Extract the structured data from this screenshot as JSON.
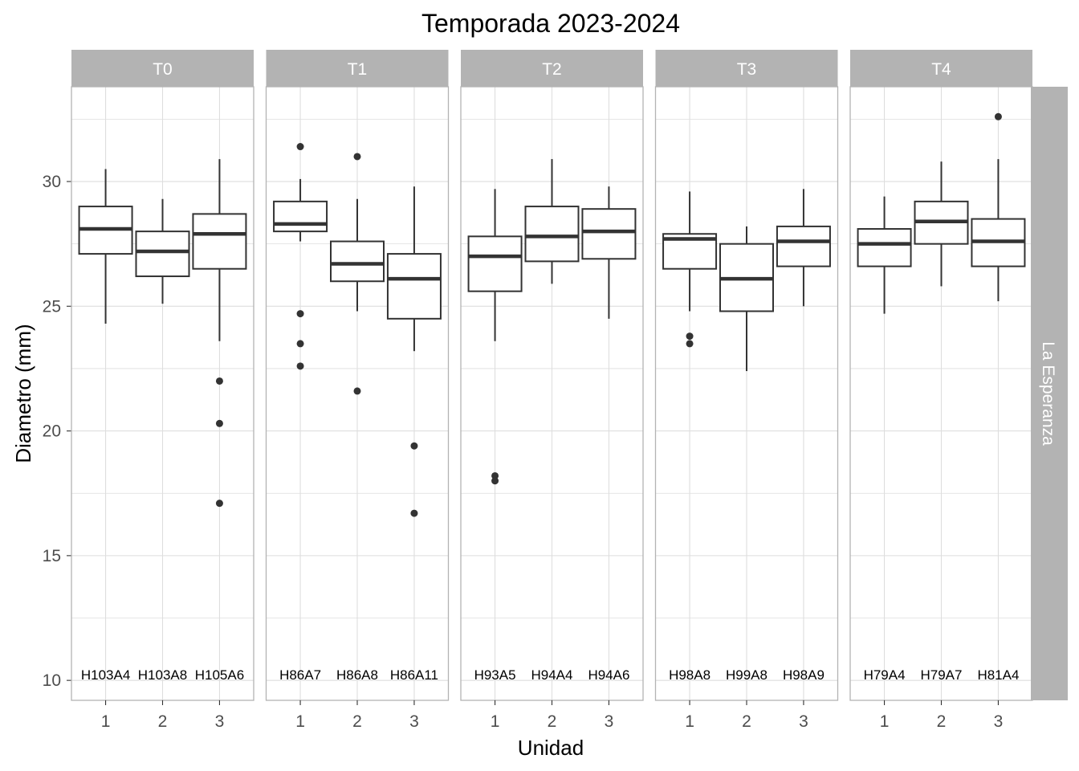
{
  "chart_data": {
    "type": "boxplot",
    "title": "Temporada 2023-2024",
    "xlabel": "Unidad",
    "ylabel": "Diametro (mm)",
    "row_strip": "La Esperanza",
    "ylim": [
      9.2,
      33.8
    ],
    "yticks": [
      10,
      15,
      20,
      25,
      30
    ],
    "categories": [
      "1",
      "2",
      "3"
    ],
    "grid": true,
    "panels": [
      {
        "name": "T0",
        "labels": [
          "H103A4",
          "H103A8",
          "H105A6"
        ],
        "boxes": [
          {
            "unit": "1",
            "q1": 27.1,
            "median": 28.1,
            "q3": 29.0,
            "whisker_low": 24.3,
            "whisker_high": 30.5,
            "outliers": []
          },
          {
            "unit": "2",
            "q1": 26.2,
            "median": 27.2,
            "q3": 28.0,
            "whisker_low": 25.1,
            "whisker_high": 29.3,
            "outliers": []
          },
          {
            "unit": "3",
            "q1": 26.5,
            "median": 27.9,
            "q3": 28.7,
            "whisker_low": 23.6,
            "whisker_high": 30.9,
            "outliers": [
              22.0,
              20.3,
              17.1
            ]
          }
        ]
      },
      {
        "name": "T1",
        "labels": [
          "H86A7",
          "H86A8",
          "H86A11"
        ],
        "boxes": [
          {
            "unit": "1",
            "q1": 28.0,
            "median": 28.3,
            "q3": 29.2,
            "whisker_low": 27.6,
            "whisker_high": 30.1,
            "outliers": [
              31.4,
              24.7,
              23.5,
              22.6
            ]
          },
          {
            "unit": "2",
            "q1": 26.0,
            "median": 26.7,
            "q3": 27.6,
            "whisker_low": 24.8,
            "whisker_high": 29.3,
            "outliers": [
              31.0,
              21.6
            ]
          },
          {
            "unit": "3",
            "q1": 24.5,
            "median": 26.1,
            "q3": 27.1,
            "whisker_low": 23.2,
            "whisker_high": 29.8,
            "outliers": [
              19.4,
              16.7
            ]
          }
        ]
      },
      {
        "name": "T2",
        "labels": [
          "H93A5",
          "H94A4",
          "H94A6"
        ],
        "boxes": [
          {
            "unit": "1",
            "q1": 25.6,
            "median": 27.0,
            "q3": 27.8,
            "whisker_low": 23.6,
            "whisker_high": 29.7,
            "outliers": [
              18.2,
              18.0
            ]
          },
          {
            "unit": "2",
            "q1": 26.8,
            "median": 27.8,
            "q3": 29.0,
            "whisker_low": 25.9,
            "whisker_high": 30.9,
            "outliers": []
          },
          {
            "unit": "3",
            "q1": 26.9,
            "median": 28.0,
            "q3": 28.9,
            "whisker_low": 24.5,
            "whisker_high": 29.8,
            "outliers": []
          }
        ]
      },
      {
        "name": "T3",
        "labels": [
          "H98A8",
          "H99A8",
          "H98A9"
        ],
        "boxes": [
          {
            "unit": "1",
            "q1": 26.5,
            "median": 27.7,
            "q3": 27.9,
            "whisker_low": 24.8,
            "whisker_high": 29.6,
            "outliers": [
              23.8,
              23.5
            ]
          },
          {
            "unit": "2",
            "q1": 24.8,
            "median": 26.1,
            "q3": 27.5,
            "whisker_low": 22.4,
            "whisker_high": 28.2,
            "outliers": []
          },
          {
            "unit": "3",
            "q1": 26.6,
            "median": 27.6,
            "q3": 28.2,
            "whisker_low": 25.0,
            "whisker_high": 29.7,
            "outliers": []
          }
        ]
      },
      {
        "name": "T4",
        "labels": [
          "H79A4",
          "H79A7",
          "H81A4"
        ],
        "boxes": [
          {
            "unit": "1",
            "q1": 26.6,
            "median": 27.5,
            "q3": 28.1,
            "whisker_low": 24.7,
            "whisker_high": 29.4,
            "outliers": []
          },
          {
            "unit": "2",
            "q1": 27.5,
            "median": 28.4,
            "q3": 29.2,
            "whisker_low": 25.8,
            "whisker_high": 30.8,
            "outliers": []
          },
          {
            "unit": "3",
            "q1": 26.6,
            "median": 27.6,
            "q3": 28.5,
            "whisker_low": 25.2,
            "whisker_high": 30.9,
            "outliers": [
              32.6
            ]
          }
        ]
      }
    ],
    "colors": {
      "strip_background": "#b3b3b3",
      "strip_text": "#ffffff",
      "grid": "#dedede",
      "panel_border": "#b3b3b3",
      "box_line": "#333333",
      "tick_text": "#4d4d4d"
    }
  }
}
